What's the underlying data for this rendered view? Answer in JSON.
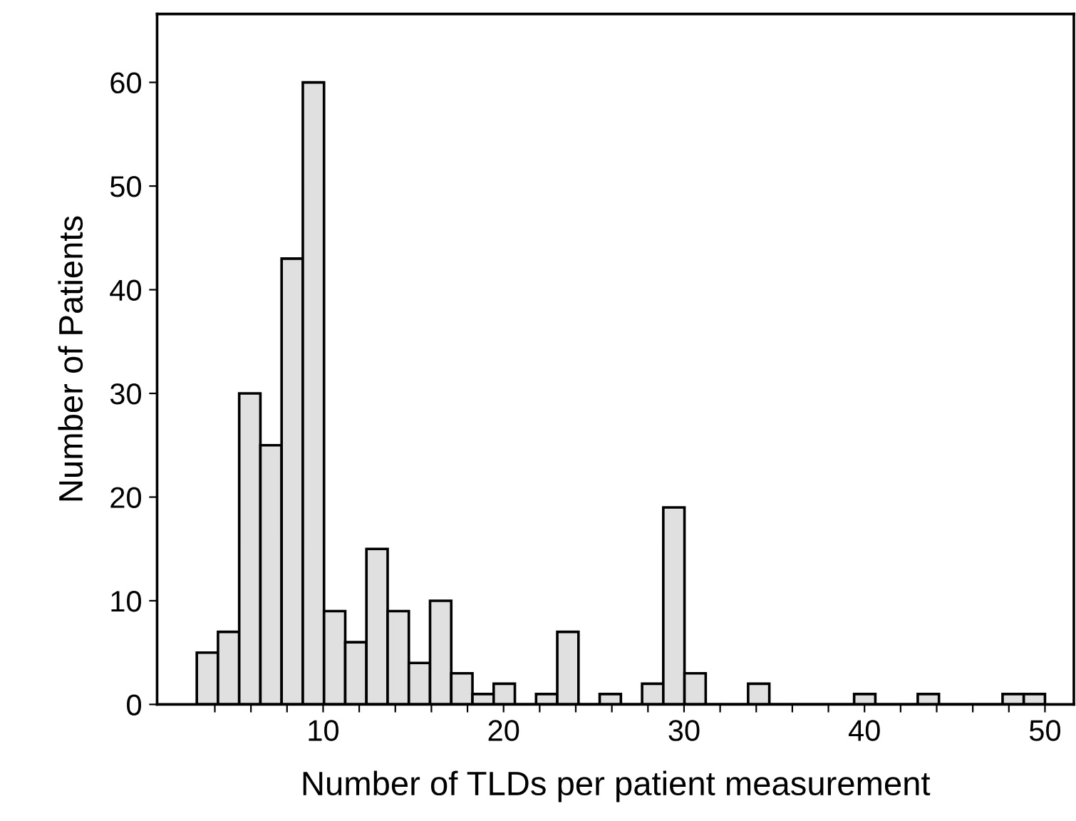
{
  "chart_data": {
    "type": "histogram",
    "xlabel": "Number of TLDs per patient measurement",
    "ylabel": "Number of Patients",
    "bins": [
      3,
      4.175,
      5.35,
      6.525,
      7.7,
      8.875,
      10.05,
      11.225,
      12.4,
      13.575,
      14.75,
      15.925,
      17.1,
      18.275,
      19.45,
      20.625,
      21.8,
      22.975,
      24.15,
      25.325,
      26.5,
      27.675,
      28.85,
      30.025,
      31.2,
      32.375,
      33.55,
      34.725,
      35.9,
      37.075,
      38.25,
      39.425,
      40.6,
      41.775,
      42.95,
      44.125,
      45.3,
      46.475,
      47.65,
      48.825,
      50
    ],
    "values": [
      5,
      7,
      30,
      25,
      43,
      60,
      9,
      6,
      15,
      9,
      4,
      10,
      3,
      1,
      2,
      0,
      1,
      7,
      0,
      1,
      0,
      2,
      19,
      3,
      0,
      0,
      2,
      0,
      0,
      0,
      0,
      1,
      0,
      0,
      1,
      0,
      0,
      0,
      1,
      1
    ],
    "color": "#e0e0e0",
    "xlim": [
      0.8,
      51.6
    ],
    "ylim": [
      0,
      66.6
    ],
    "xticks": [
      {
        "value": 4,
        "label": null
      },
      {
        "value": 6,
        "label": null
      },
      {
        "value": 8,
        "label": null
      },
      10,
      {
        "value": 12,
        "label": null
      },
      {
        "value": 14,
        "label": null
      },
      {
        "value": 16,
        "label": null
      },
      {
        "value": 18,
        "label": null
      },
      20,
      {
        "value": 22,
        "label": null
      },
      {
        "value": 24,
        "label": null
      },
      {
        "value": 26,
        "label": null
      },
      {
        "value": 28,
        "label": null
      },
      30,
      {
        "value": 32,
        "label": null
      },
      {
        "value": 34,
        "label": null
      },
      {
        "value": 36,
        "label": null
      },
      {
        "value": 38,
        "label": null
      },
      40,
      {
        "value": 42,
        "label": null
      },
      {
        "value": 44,
        "label": null
      },
      {
        "value": 46,
        "label": null
      },
      {
        "value": 48,
        "label": null
      },
      50
    ],
    "yticks": [
      0,
      10,
      20,
      30,
      40,
      50,
      60
    ],
    "grid": false,
    "legend": false
  }
}
